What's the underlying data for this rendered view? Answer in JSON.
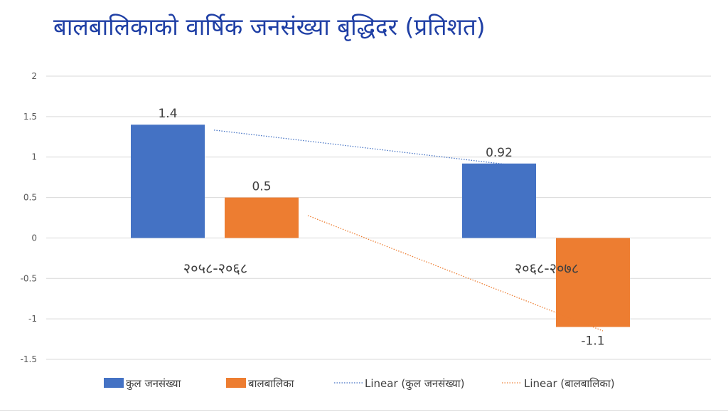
{
  "chart_data": {
    "type": "bar",
    "title": "बालबालिकाको वार्षिक जनसंख्या बृद्धिदर (प्रतिशत)",
    "categories": [
      "२०५८-२०६८",
      "२०६८-२०७८"
    ],
    "series": [
      {
        "name": "कुल  जनसंख्या",
        "values": [
          1.4,
          0.92
        ],
        "color": "#4472c4"
      },
      {
        "name": "बालबालिका",
        "values": [
          0.5,
          -1.1
        ],
        "color": "#ed7d31"
      }
    ],
    "trendlines": [
      {
        "name": "Linear (कुल  जनसंख्या)",
        "series": 0,
        "style": "dotted"
      },
      {
        "name": "Linear (बालबालिका)",
        "series": 1,
        "style": "dotted"
      }
    ],
    "data_labels": [
      "1.4",
      "0.92",
      "0.5",
      "-1.1"
    ],
    "y_ticks": [
      "2",
      "1.5",
      "1",
      "0.5",
      "0",
      "-0.5",
      "-1",
      "-1.5"
    ],
    "ylim": [
      -1.5,
      2
    ],
    "grid": true,
    "legend_position": "bottom"
  }
}
